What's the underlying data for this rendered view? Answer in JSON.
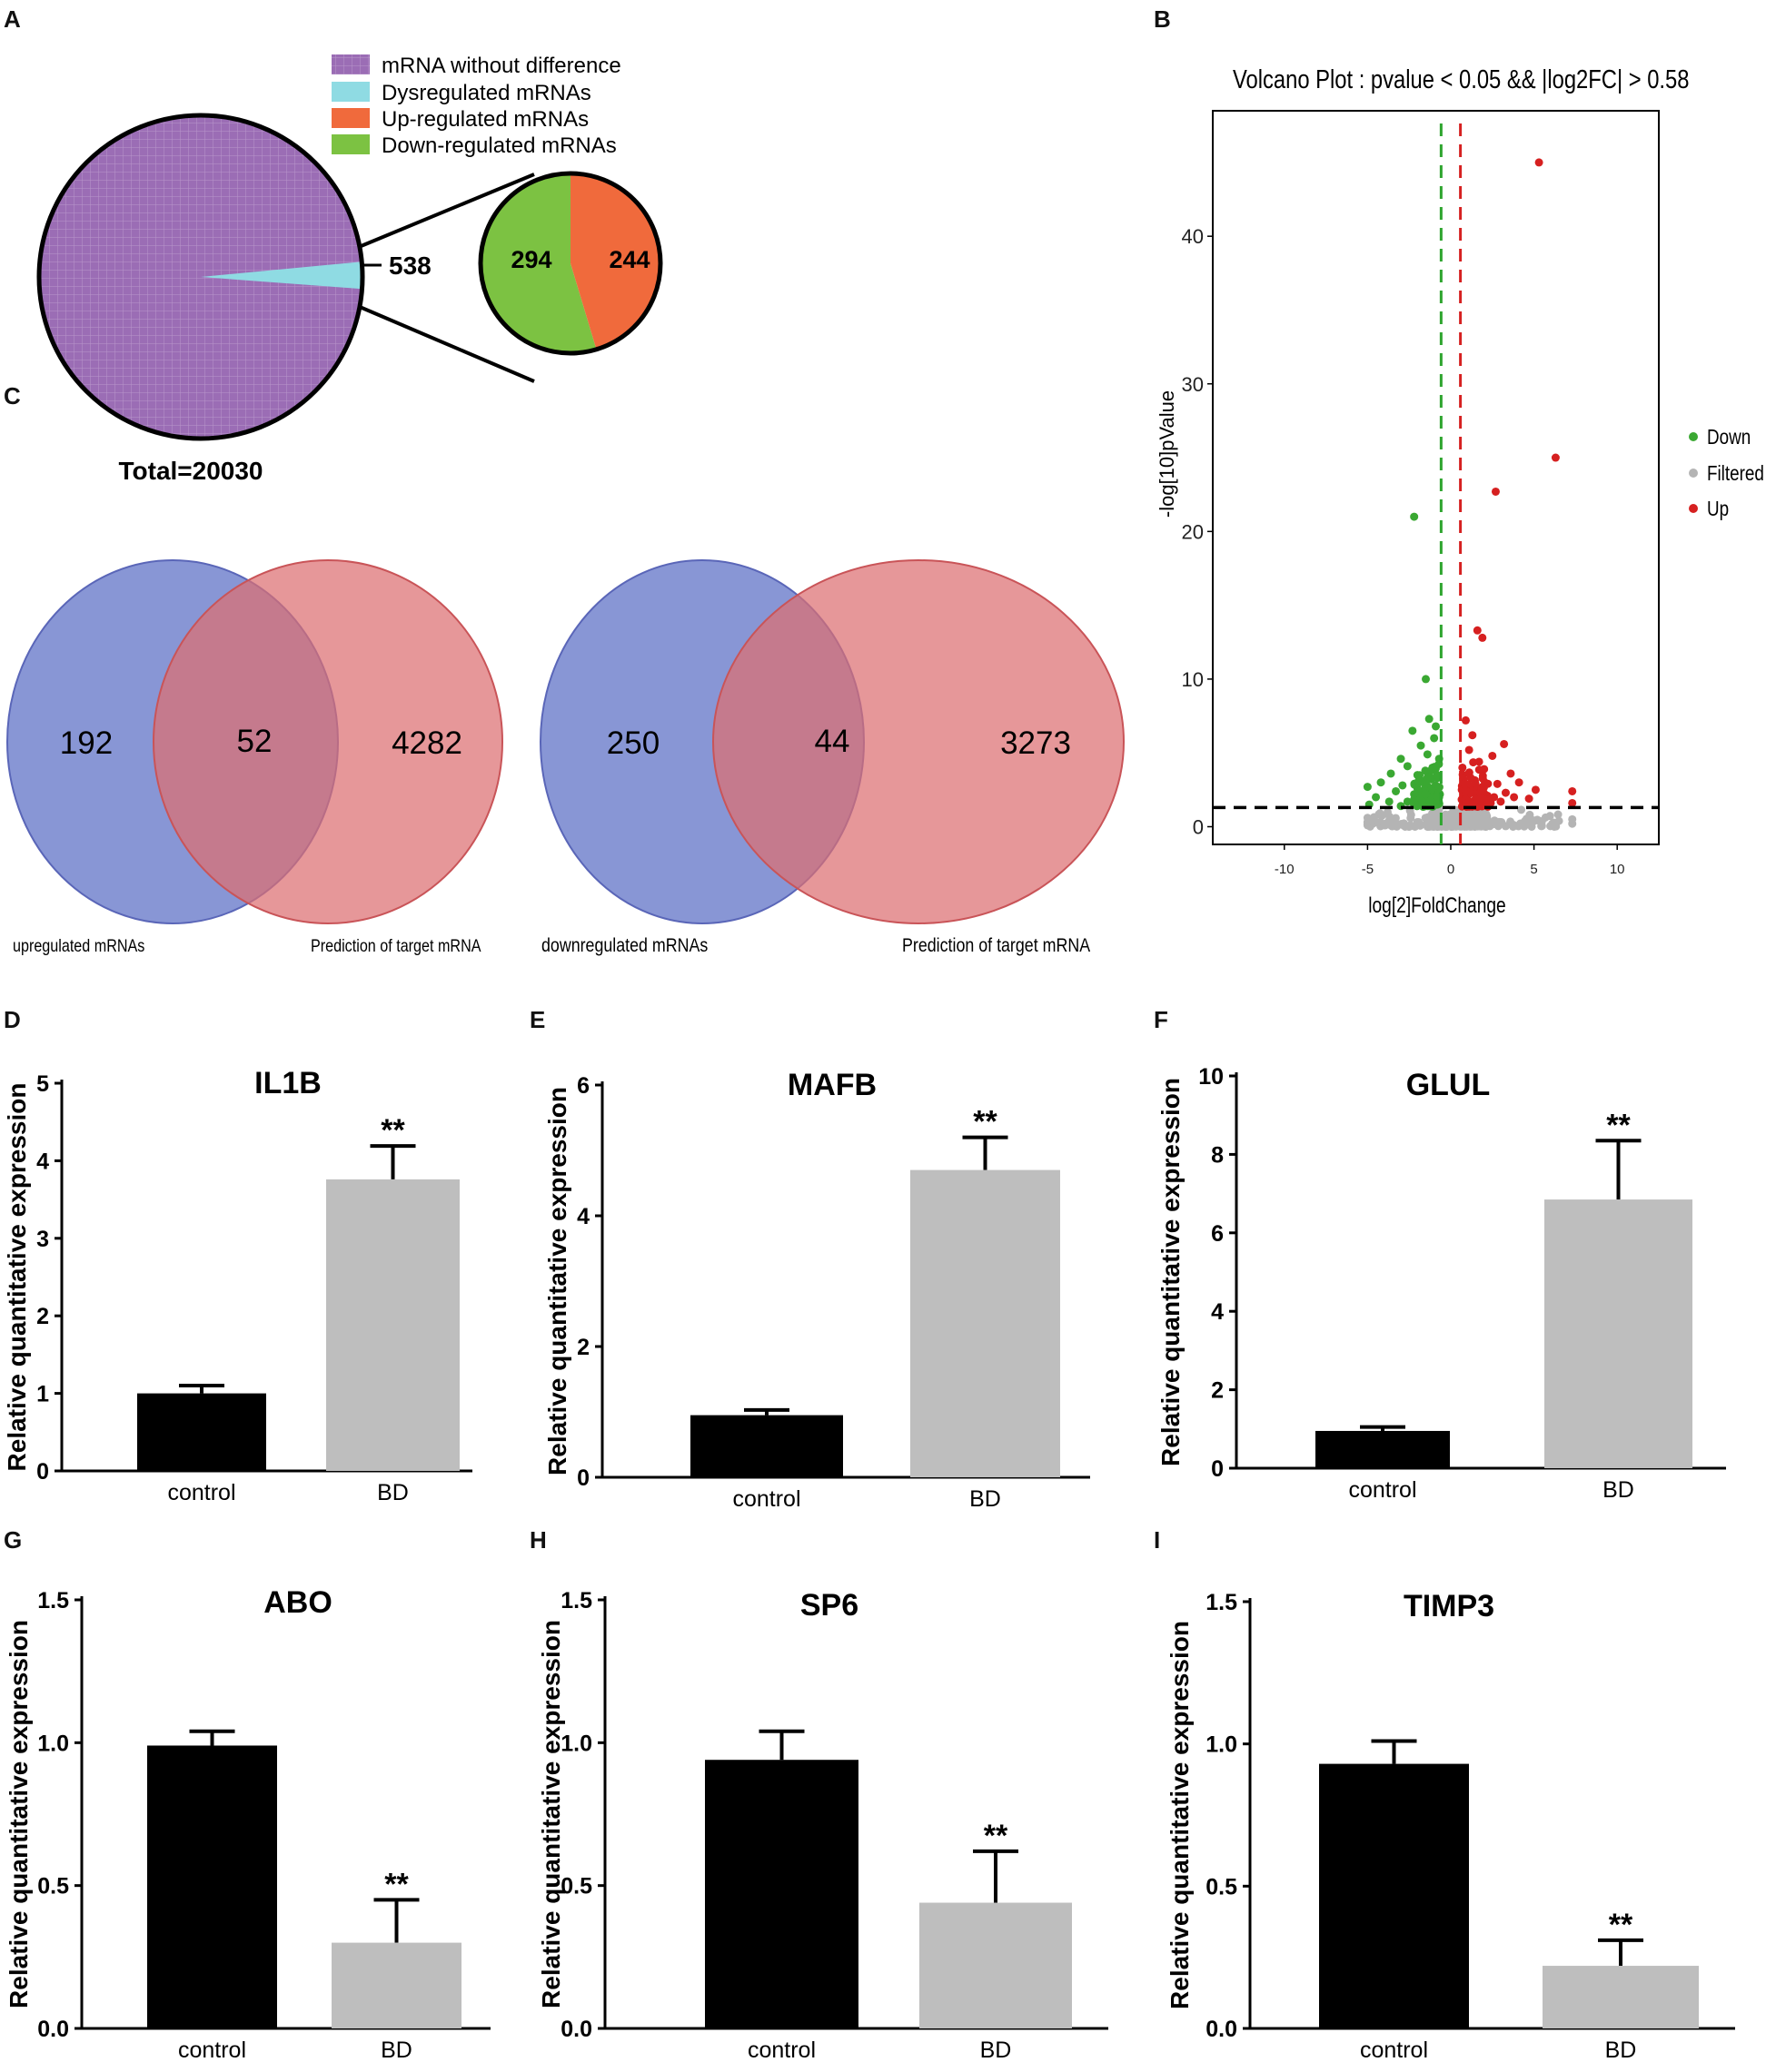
{
  "panel_labels": {
    "a": "A",
    "b": "B",
    "c": "C",
    "d": "D",
    "e": "E",
    "f": "F",
    "g": "G",
    "h": "H",
    "i": "I"
  },
  "colors": {
    "purple": "#9b6db5",
    "cyan": "#8fdbe3",
    "orange": "#f06a3c",
    "green": "#7cc242",
    "venn_blue": "#6e7fcc",
    "venn_red": "#dd6f72",
    "volcano_down": "#3aa832",
    "volcano_filtered": "#b4b4b4",
    "volcano_up": "#d62020",
    "bar_control": "#000000",
    "bar_bd": "#bebebe"
  },
  "chart_data": [
    {
      "id": "A",
      "type": "pie",
      "legend": [
        "mRNA without difference",
        "Dysregulated mRNAs",
        "Up-regulated mRNAs",
        "Down-regulated mRNAs"
      ],
      "total_label": "Total=20030",
      "main_slices": [
        {
          "name": "mRNA without difference",
          "value": 19492
        },
        {
          "name": "Dysregulated mRNAs",
          "value": 538
        }
      ],
      "callout": "538",
      "sub_slices": [
        {
          "name": "Down-regulated mRNAs",
          "value": 294,
          "label": "294"
        },
        {
          "name": "Up-regulated mRNAs",
          "value": 244,
          "label": "244"
        }
      ]
    },
    {
      "id": "B",
      "type": "scatter",
      "title": "Volcano Plot : pvalue < 0.05 && |log2FC| > 0.58",
      "xlabel": "log[2]FoldChange",
      "ylabel": "-log[10]pValue",
      "xlim": [
        -14.3,
        12.5
      ],
      "ylim": [
        -1.2,
        48.5
      ],
      "xticks": [
        -10,
        -5,
        0,
        5,
        10
      ],
      "xtick_labels": [
        "-10",
        "-5",
        "0",
        "5",
        "10"
      ],
      "yticks": [
        0,
        10,
        20,
        30,
        40
      ],
      "ytick_labels": [
        "0",
        "10",
        "20",
        "30",
        "40"
      ],
      "thresholds": {
        "down_fc": -0.58,
        "up_fc": 0.58,
        "p_line": 1.3
      },
      "legend": [
        "Down",
        "Filtered",
        "Up"
      ],
      "series": [
        {
          "name": "Up",
          "points": [
            [
              5.3,
              45
            ],
            [
              6.3,
              25
            ],
            [
              2.7,
              22.7
            ],
            [
              1.6,
              13.3
            ],
            [
              1.9,
              12.8
            ],
            [
              0.9,
              7.2
            ],
            [
              1.3,
              6.2
            ],
            [
              3.2,
              5.6
            ],
            [
              1.1,
              5.2
            ],
            [
              2.5,
              4.8
            ],
            [
              1.7,
              4.4
            ],
            [
              0.7,
              4.0
            ],
            [
              2.0,
              3.9
            ],
            [
              3.6,
              3.6
            ],
            [
              1.2,
              3.3
            ],
            [
              4.1,
              3.0
            ],
            [
              2.8,
              2.9
            ],
            [
              0.8,
              2.8
            ],
            [
              1.5,
              2.6
            ],
            [
              5.1,
              2.5
            ],
            [
              3.3,
              2.3
            ],
            [
              7.3,
              2.4
            ],
            [
              1.0,
              2.2
            ],
            [
              2.2,
              2.1
            ],
            [
              4.7,
              1.9
            ],
            [
              1.8,
              1.9
            ],
            [
              0.9,
              1.8
            ],
            [
              3.0,
              1.7
            ],
            [
              2.4,
              1.6
            ],
            [
              7.3,
              1.6
            ],
            [
              1.4,
              1.5
            ],
            [
              0.7,
              1.4
            ],
            [
              2.6,
              2.0
            ],
            [
              1.9,
              2.7
            ],
            [
              1.2,
              1.7
            ],
            [
              3.8,
              2.0
            ]
          ]
        },
        {
          "name": "Down",
          "points": [
            [
              -2.2,
              21
            ],
            [
              -1.5,
              10
            ],
            [
              -1.3,
              7.3
            ],
            [
              -2.3,
              6.5
            ],
            [
              -0.9,
              6.8
            ],
            [
              -1.0,
              6.0
            ],
            [
              -1.8,
              5.5
            ],
            [
              -3.0,
              4.6
            ],
            [
              -1.4,
              4.9
            ],
            [
              -0.7,
              4.6
            ],
            [
              -2.6,
              4.1
            ],
            [
              -1.1,
              4.0
            ],
            [
              -3.6,
              3.6
            ],
            [
              -2.0,
              3.5
            ],
            [
              -0.8,
              3.3
            ],
            [
              -4.2,
              3.0
            ],
            [
              -1.6,
              3.1
            ],
            [
              -2.9,
              2.8
            ],
            [
              -0.9,
              2.6
            ],
            [
              -5.0,
              2.7
            ],
            [
              -3.3,
              2.4
            ],
            [
              -1.3,
              2.3
            ],
            [
              -2.2,
              2.2
            ],
            [
              -4.5,
              2.0
            ],
            [
              -0.7,
              2.0
            ],
            [
              -1.9,
              1.9
            ],
            [
              -3.7,
              1.7
            ],
            [
              -2.6,
              1.7
            ],
            [
              -1.1,
              1.6
            ],
            [
              -4.9,
              1.5
            ],
            [
              -0.8,
              1.5
            ],
            [
              -1.5,
              1.4
            ],
            [
              -3.0,
              1.4
            ],
            [
              -2.0,
              2.6
            ],
            [
              -1.2,
              3.8
            ],
            [
              -0.9,
              1.9
            ]
          ]
        }
      ],
      "filtered_spread": "dense cluster of non-significant genes near y = 0, x from -5 to 7.3"
    },
    {
      "id": "C1",
      "type": "venn",
      "sets": [
        "upregulated mRNAs",
        "Prediction of target mRNA"
      ],
      "only_left": 192,
      "overlap": 52,
      "only_right": 4282
    },
    {
      "id": "C2",
      "type": "venn",
      "sets": [
        "downregulated mRNAs",
        "Prediction of target mRNA"
      ],
      "only_left": 250,
      "overlap": 44,
      "only_right": 3273
    },
    {
      "id": "D",
      "type": "bar",
      "title": "IL1B",
      "ylabel": "Relative quantitative expression",
      "categories": [
        "control",
        "BD"
      ],
      "values": [
        1.0,
        3.76
      ],
      "errors": [
        0.1,
        0.43
      ],
      "significance": "**",
      "ylim": [
        0,
        5
      ],
      "yticks": [
        0,
        1,
        2,
        3,
        4,
        5
      ],
      "ytick_labels": [
        "0",
        "1",
        "2",
        "3",
        "4",
        "5"
      ]
    },
    {
      "id": "E",
      "type": "bar",
      "title": "MAFB",
      "ylabel": "Relative quantitative expression",
      "categories": [
        "control",
        "BD"
      ],
      "values": [
        0.95,
        4.7
      ],
      "errors": [
        0.08,
        0.5
      ],
      "significance": "**",
      "ylim": [
        0,
        6
      ],
      "yticks": [
        0,
        2,
        4,
        6
      ],
      "ytick_labels": [
        "0",
        "2",
        "4",
        "6"
      ]
    },
    {
      "id": "F",
      "type": "bar",
      "title": "GLUL",
      "ylabel": "Relative quantitative expression",
      "categories": [
        "control",
        "BD"
      ],
      "values": [
        0.95,
        6.85
      ],
      "errors": [
        0.1,
        1.5
      ],
      "significance": "**",
      "ylim": [
        0,
        10
      ],
      "yticks": [
        0,
        2,
        4,
        6,
        8,
        10
      ],
      "ytick_labels": [
        "0",
        "2",
        "4",
        "6",
        "8",
        "10"
      ]
    },
    {
      "id": "G",
      "type": "bar",
      "title": "ABO",
      "ylabel": "Relative quantitative expression",
      "categories": [
        "control",
        "BD"
      ],
      "values": [
        0.99,
        0.3
      ],
      "errors": [
        0.05,
        0.15
      ],
      "significance": "**",
      "ylim": [
        0,
        1.5
      ],
      "yticks": [
        0,
        0.5,
        1,
        1.5
      ],
      "ytick_labels": [
        "0.0",
        "0.5",
        "1.0",
        "1.5"
      ]
    },
    {
      "id": "H",
      "type": "bar",
      "title": "SP6",
      "ylabel": "Relative quantitative expression",
      "categories": [
        "control",
        "BD"
      ],
      "values": [
        0.94,
        0.44
      ],
      "errors": [
        0.1,
        0.18
      ],
      "significance": "**",
      "ylim": [
        0,
        1.5
      ],
      "yticks": [
        0,
        0.5,
        1,
        1.5
      ],
      "ytick_labels": [
        "0.0",
        "0.5",
        "1.0",
        "1.5"
      ]
    },
    {
      "id": "I",
      "type": "bar",
      "title": "TIMP3",
      "ylabel": "Relative quantitative expression",
      "categories": [
        "control",
        "BD"
      ],
      "values": [
        0.93,
        0.22
      ],
      "errors": [
        0.08,
        0.09
      ],
      "significance": "**",
      "ylim": [
        0,
        1.5
      ],
      "yticks": [
        0,
        0.5,
        1,
        1.5
      ],
      "ytick_labels": [
        "0.0",
        "0.5",
        "1.0",
        "1.5"
      ]
    }
  ]
}
